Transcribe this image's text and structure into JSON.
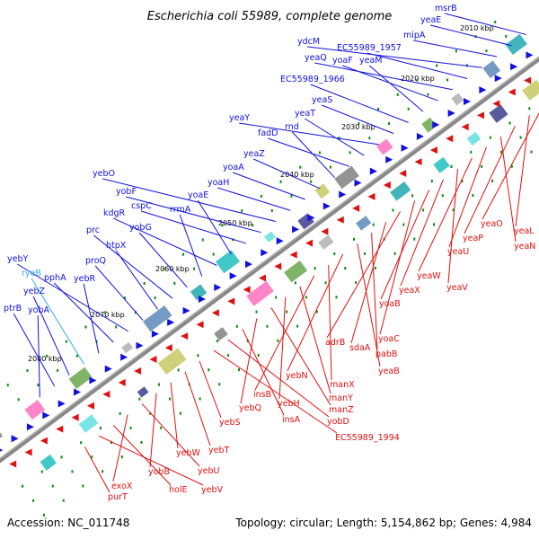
{
  "title": "Escherichia coli 55989, complete genome",
  "footer": {
    "accession": "Accession: NC_011748",
    "topology": "Topology: circular; Length: 5,154,862 bp; Genes: 4,984"
  },
  "colors": {
    "forward": "#1010e0",
    "reverse": "#e01010",
    "rna": "#30b0e0",
    "backbone": "#808080"
  },
  "ticks": [
    "2010 kbp",
    "2020 kbp",
    "2030 kbp",
    "2040 kbp",
    "2050 kbp",
    "2060 kbp",
    "2070 kbp",
    "2080 kbp"
  ],
  "genes_forward": [
    "msrB",
    "yeaE",
    "mipA",
    "ydcM",
    "EC55989_1957",
    "yeaQ",
    "yoaF",
    "yeaM",
    "EC55989_1966",
    "yeaS",
    "yeaY",
    "yeaT",
    "fadD",
    "rnd",
    "yeaZ",
    "yoaA",
    "yoaH",
    "yebO",
    "yobF",
    "cspC",
    "yoaE",
    "kdgR",
    "rrmA",
    "yobG",
    "prc",
    "htpX",
    "proQ",
    "yebY",
    "pphA",
    "yebR",
    "ryeB",
    "yebZ",
    "ptrB",
    "yobA"
  ],
  "genes_reverse": [
    "yeaO",
    "yeaL",
    "yeaP",
    "yeaN",
    "yeaU",
    "yeaW",
    "yeaV",
    "yeaX",
    "yoaB",
    "yoaC",
    "adrB",
    "sdaA",
    "pabB",
    "yeaB",
    "yebN",
    "manX",
    "insB",
    "manY",
    "yebH",
    "manZ",
    "yebQ",
    "insA",
    "yobD",
    "EC55989_1994",
    "yebS",
    "yebT",
    "yebW",
    "yobB",
    "yebU",
    "exoX",
    "holE",
    "yebV",
    "purT"
  ]
}
